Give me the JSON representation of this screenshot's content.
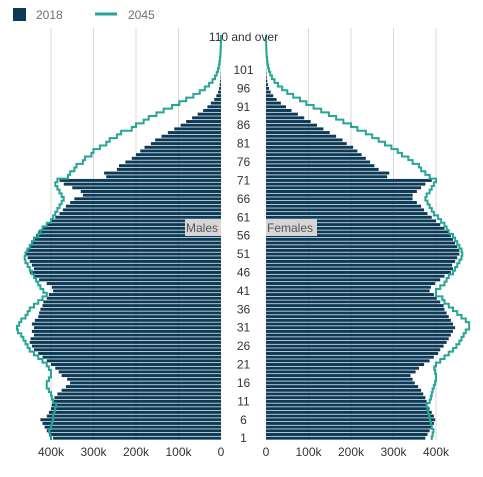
{
  "legend": [
    {
      "label": "2018",
      "marker": "square"
    },
    {
      "label": "2045",
      "marker": "line"
    }
  ],
  "colors": {
    "bars_2018": "#0d3b57",
    "line_2045": "#27a597",
    "grid": "#d9d9d9",
    "label_bg": "#d6d6d6"
  },
  "chart_data": {
    "type": "population-pyramid",
    "ages": [
      "1",
      "2",
      "3",
      "4",
      "5",
      "6",
      "7",
      "8",
      "9",
      "10",
      "11",
      "12",
      "13",
      "14",
      "15",
      "16",
      "17",
      "18",
      "19",
      "20",
      "21",
      "22",
      "23",
      "24",
      "25",
      "26",
      "27",
      "28",
      "29",
      "30",
      "31",
      "32",
      "33",
      "34",
      "35",
      "36",
      "37",
      "38",
      "39",
      "40",
      "41",
      "42",
      "43",
      "44",
      "45",
      "46",
      "47",
      "48",
      "49",
      "50",
      "51",
      "52",
      "53",
      "54",
      "55",
      "56",
      "57",
      "58",
      "59",
      "60",
      "61",
      "62",
      "63",
      "64",
      "65",
      "66",
      "67",
      "68",
      "69",
      "70",
      "71",
      "72",
      "73",
      "74",
      "75",
      "76",
      "77",
      "78",
      "79",
      "80",
      "81",
      "82",
      "83",
      "84",
      "85",
      "86",
      "87",
      "88",
      "89",
      "90",
      "91",
      "92",
      "93",
      "94",
      "95",
      "96",
      "97",
      "98",
      "99",
      "100",
      "101",
      "102",
      "103",
      "104",
      "105",
      "106",
      "107",
      "108",
      "109",
      "110 and over"
    ],
    "ytick_labels": [
      "1",
      "6",
      "11",
      "16",
      "21",
      "26",
      "31",
      "36",
      "41",
      "46",
      "51",
      "56",
      "61",
      "66",
      "71",
      "76",
      "81",
      "86",
      "91",
      "96",
      "101",
      "110 and over"
    ],
    "x_ticks_left": [
      "400k",
      "300k",
      "200k",
      "100k",
      "0"
    ],
    "x_ticks_right": [
      "0",
      "100k",
      "200k",
      "300k",
      "400k"
    ],
    "xlim": [
      0,
      450000
    ],
    "left_panel_label": "Males",
    "right_panel_label": "Females",
    "grid": true,
    "legend_position": "top-left",
    "series": [
      {
        "name": "2018",
        "kind": "bars",
        "males": [
          395000,
          405000,
          410000,
          415000,
          420000,
          425000,
          410000,
          405000,
          400000,
          398000,
          396000,
          392000,
          385000,
          375000,
          365000,
          355000,
          362000,
          375000,
          382000,
          390000,
          400000,
          410000,
          420000,
          430000,
          440000,
          445000,
          450000,
          448000,
          440000,
          445000,
          440000,
          445000,
          438000,
          430000,
          428000,
          425000,
          420000,
          418000,
          410000,
          405000,
          395000,
          398000,
          410000,
          428000,
          440000,
          450000,
          440000,
          445000,
          450000,
          455000,
          460000,
          458000,
          450000,
          445000,
          440000,
          435000,
          430000,
          420000,
          410000,
          400000,
          390000,
          380000,
          372000,
          365000,
          355000,
          345000,
          325000,
          330000,
          350000,
          370000,
          380000,
          270000,
          275000,
          245000,
          240000,
          225000,
          210000,
          200000,
          190000,
          180000,
          165000,
          155000,
          140000,
          125000,
          110000,
          95000,
          82000,
          68000,
          55000,
          42000,
          32000,
          24000,
          16000,
          11000,
          7000,
          4500,
          3000,
          2000,
          1200,
          800,
          500,
          300,
          200,
          100,
          60,
          40,
          20,
          10,
          5,
          5
        ]
      },
      {
        "name": "2045",
        "kind": "line",
        "males": [
          400000,
          402000,
          404000,
          400000,
          398000,
          395000,
          395000,
          392000,
          390000,
          388000,
          395000,
          398000,
          400000,
          405000,
          410000,
          410000,
          405000,
          400000,
          400000,
          405000,
          410000,
          420000,
          430000,
          440000,
          450000,
          455000,
          460000,
          465000,
          470000,
          478000,
          480000,
          475000,
          470000,
          460000,
          455000,
          450000,
          440000,
          430000,
          420000,
          410000,
          418000,
          425000,
          430000,
          435000,
          440000,
          445000,
          450000,
          455000,
          460000,
          462000,
          460000,
          455000,
          450000,
          445000,
          440000,
          430000,
          425000,
          420000,
          410000,
          400000,
          395000,
          390000,
          385000,
          380000,
          375000,
          370000,
          375000,
          380000,
          385000,
          390000,
          385000,
          360000,
          355000,
          345000,
          340000,
          325000,
          320000,
          305000,
          300000,
          285000,
          270000,
          262000,
          245000,
          235000,
          210000,
          200000,
          182000,
          170000,
          152000,
          135000,
          115000,
          98000,
          82000,
          65000,
          50000,
          38000,
          28000,
          20000,
          14000,
          10000,
          7000,
          5000,
          3500,
          2500,
          1500,
          1000,
          600,
          400,
          200,
          150
        ],
        "females": [
          390000,
          392000,
          394000,
          390000,
          388000,
          386000,
          384000,
          382000,
          380000,
          378000,
          385000,
          388000,
          390000,
          392000,
          395000,
          398000,
          400000,
          400000,
          398000,
          396000,
          400000,
          410000,
          420000,
          430000,
          440000,
          448000,
          455000,
          460000,
          465000,
          470000,
          478000,
          478000,
          470000,
          460000,
          450000,
          440000,
          430000,
          420000,
          415000,
          400000,
          400000,
          410000,
          420000,
          425000,
          430000,
          440000,
          445000,
          450000,
          455000,
          460000,
          462000,
          460000,
          455000,
          450000,
          445000,
          440000,
          430000,
          425000,
          420000,
          412000,
          405000,
          395000,
          390000,
          385000,
          380000,
          375000,
          378000,
          385000,
          390000,
          395000,
          400000,
          385000,
          375000,
          365000,
          360000,
          345000,
          335000,
          320000,
          310000,
          295000,
          280000,
          265000,
          250000,
          235000,
          215000,
          200000,
          182000,
          165000,
          148000,
          130000,
          112000,
          95000,
          80000,
          64000,
          50000,
          38000,
          28000,
          20000,
          14000,
          10000,
          7000,
          5000,
          3500,
          2500,
          1500,
          1000,
          600,
          400,
          200,
          150
        ]
      },
      {
        "name": "2018",
        "kind": "bars-female",
        "females": [
          375000,
          380000,
          385000,
          390000,
          395000,
          398000,
          395000,
          390000,
          385000,
          380000,
          378000,
          375000,
          370000,
          365000,
          358000,
          350000,
          345000,
          340000,
          352000,
          360000,
          372000,
          385000,
          395000,
          405000,
          410000,
          418000,
          425000,
          430000,
          435000,
          440000,
          445000,
          440000,
          435000,
          430000,
          425000,
          420000,
          418000,
          410000,
          402000,
          395000,
          385000,
          388000,
          398000,
          410000,
          420000,
          435000,
          440000,
          438000,
          445000,
          450000,
          455000,
          455000,
          450000,
          445000,
          440000,
          435000,
          430000,
          420000,
          410000,
          400000,
          390000,
          380000,
          372000,
          365000,
          355000,
          345000,
          345000,
          355000,
          365000,
          375000,
          390000,
          285000,
          290000,
          265000,
          255000,
          245000,
          235000,
          225000,
          215000,
          205000,
          190000,
          180000,
          165000,
          150000,
          135000,
          120000,
          105000,
          90000,
          75000,
          60000,
          47000,
          35000,
          25000,
          17000,
          11000,
          7000,
          4500,
          3000,
          1800,
          1100,
          700,
          400,
          250,
          150,
          80,
          50,
          30,
          15,
          8,
          5
        ]
      }
    ]
  }
}
